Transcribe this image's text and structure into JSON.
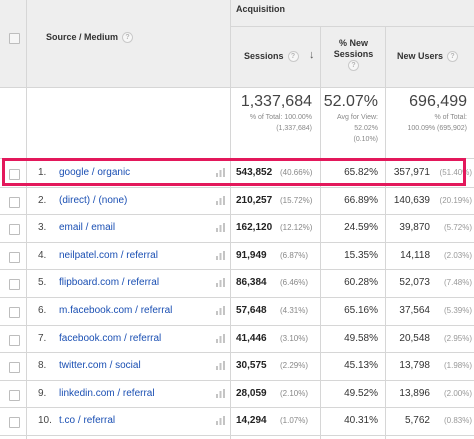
{
  "header": {
    "group_label": "Acquisition",
    "source_medium": "Source / Medium",
    "sessions": "Sessions",
    "pct_new_sessions_line1": "% New",
    "pct_new_sessions_line2": "Sessions",
    "new_users": "New Users",
    "help_glyph": "?",
    "sort_glyph": "↓"
  },
  "totals": {
    "sessions": "1,337,684",
    "sessions_sub1": "% of Total: 100.00%",
    "sessions_sub2": "(1,337,684)",
    "pct_new": "52.07%",
    "pct_new_sub1": "Avg for View:",
    "pct_new_sub2": "52.02%",
    "pct_new_sub3": "(0.10%)",
    "new_users": "696,499",
    "new_users_sub1": "% of Total:",
    "new_users_sub2": "100.09% (695,902)"
  },
  "rows": [
    {
      "num": "1.",
      "source": "google / organic",
      "sessions": "543,852",
      "sessions_pct": "(40.66%)",
      "pct_new": "65.82%",
      "new_users": "357,971",
      "new_users_pct": "(51.40%)"
    },
    {
      "num": "2.",
      "source": "(direct) / (none)",
      "sessions": "210,257",
      "sessions_pct": "(15.72%)",
      "pct_new": "66.89%",
      "new_users": "140,639",
      "new_users_pct": "(20.19%)"
    },
    {
      "num": "3.",
      "source": "email / email",
      "sessions": "162,120",
      "sessions_pct": "(12.12%)",
      "pct_new": "24.59%",
      "new_users": "39,870",
      "new_users_pct": "(5.72%)"
    },
    {
      "num": "4.",
      "source": "neilpatel.com / referral",
      "sessions": "91,949",
      "sessions_pct": "(6.87%)",
      "pct_new": "15.35%",
      "new_users": "14,118",
      "new_users_pct": "(2.03%)"
    },
    {
      "num": "5.",
      "source": "flipboard.com / referral",
      "sessions": "86,384",
      "sessions_pct": "(6.46%)",
      "pct_new": "60.28%",
      "new_users": "52,073",
      "new_users_pct": "(7.48%)"
    },
    {
      "num": "6.",
      "source": "m.facebook.com / referral",
      "sessions": "57,648",
      "sessions_pct": "(4.31%)",
      "pct_new": "65.16%",
      "new_users": "37,564",
      "new_users_pct": "(5.39%)"
    },
    {
      "num": "7.",
      "source": "facebook.com / referral",
      "sessions": "41,446",
      "sessions_pct": "(3.10%)",
      "pct_new": "49.58%",
      "new_users": "20,548",
      "new_users_pct": "(2.95%)"
    },
    {
      "num": "8.",
      "source": "twitter.com / social",
      "sessions": "30,575",
      "sessions_pct": "(2.29%)",
      "pct_new": "45.13%",
      "new_users": "13,798",
      "new_users_pct": "(1.98%)"
    },
    {
      "num": "9.",
      "source": "linkedin.com / referral",
      "sessions": "28,059",
      "sessions_pct": "(2.10%)",
      "pct_new": "49.52%",
      "new_users": "13,896",
      "new_users_pct": "(2.00%)"
    },
    {
      "num": "10.",
      "source": "t.co / referral",
      "sessions": "14,294",
      "sessions_pct": "(1.07%)",
      "pct_new": "40.31%",
      "new_users": "5,762",
      "new_users_pct": "(0.83%)"
    }
  ],
  "colors": {
    "highlight": "#e3185b",
    "link": "#1a4fb3",
    "header_bg": "#eeeeee"
  },
  "icons": {
    "row_action": "bar-chart-icon",
    "help": "help-circle-icon",
    "sort": "sort-desc-arrow-icon"
  }
}
